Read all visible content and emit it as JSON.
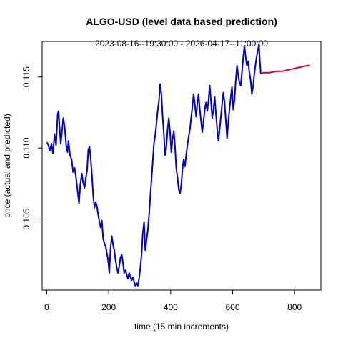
{
  "chart_data": {
    "type": "line",
    "title": "ALGO-USD (level data based prediction)",
    "subtitle": "2023-08-16--19:30:00  -  2026-04-17--11:00:00",
    "xlabel": "time (15 min increments)",
    "ylabel": "price (actual and predicted)",
    "xlim": [
      -15,
      885
    ],
    "ylim": [
      0.1,
      0.1175
    ],
    "x_ticks": [
      0,
      200,
      400,
      600,
      800
    ],
    "y_ticks": [
      0.105,
      0.11,
      0.115
    ],
    "grid": false,
    "colors": {
      "actual": "#0000cc",
      "predicted": "#cc0033"
    },
    "series": [
      {
        "points": [
          [
            0,
            0.1104
          ],
          [
            5,
            0.1102
          ],
          [
            10,
            0.1098
          ],
          [
            15,
            0.1103
          ],
          [
            20,
            0.1096
          ],
          [
            25,
            0.111
          ],
          [
            30,
            0.1102
          ],
          [
            35,
            0.1124
          ],
          [
            38,
            0.1126
          ],
          [
            42,
            0.1112
          ],
          [
            45,
            0.1103
          ],
          [
            50,
            0.1114
          ],
          [
            53,
            0.1121
          ],
          [
            57,
            0.1116
          ],
          [
            60,
            0.1109
          ],
          [
            63,
            0.1101
          ],
          [
            67,
            0.1097
          ],
          [
            70,
            0.1105
          ],
          [
            75,
            0.1095
          ],
          [
            80,
            0.1092
          ],
          [
            85,
            0.1083
          ],
          [
            90,
            0.1086
          ],
          [
            95,
            0.1078
          ],
          [
            100,
            0.1069
          ],
          [
            104,
            0.1061
          ],
          [
            108,
            0.1074
          ],
          [
            113,
            0.1082
          ],
          [
            117,
            0.1076
          ],
          [
            122,
            0.1072
          ],
          [
            126,
            0.1079
          ],
          [
            130,
            0.1084
          ],
          [
            134,
            0.1099
          ],
          [
            138,
            0.1101
          ],
          [
            142,
            0.1092
          ],
          [
            146,
            0.108
          ],
          [
            150,
            0.1066
          ],
          [
            154,
            0.1058
          ],
          [
            158,
            0.1062
          ],
          [
            162,
            0.1059
          ],
          [
            166,
            0.1053
          ],
          [
            170,
            0.1048
          ],
          [
            174,
            0.1044
          ],
          [
            178,
            0.1049
          ],
          [
            182,
            0.1036
          ],
          [
            186,
            0.1033
          ],
          [
            190,
            0.1031
          ],
          [
            194,
            0.1026
          ],
          [
            198,
            0.1021
          ],
          [
            202,
            0.1012
          ],
          [
            206,
            0.103
          ],
          [
            210,
            0.1038
          ],
          [
            214,
            0.1032
          ],
          [
            218,
            0.1028
          ],
          [
            222,
            0.1021
          ],
          [
            226,
            0.1016
          ],
          [
            230,
            0.1012
          ],
          [
            234,
            0.1017
          ],
          [
            238,
            0.1023
          ],
          [
            242,
            0.1025
          ],
          [
            246,
            0.1019
          ],
          [
            250,
            0.1012
          ],
          [
            254,
            0.1014
          ],
          [
            258,
            0.1011
          ],
          [
            262,
            0.1008
          ],
          [
            266,
            0.1012
          ],
          [
            270,
            0.1009
          ],
          [
            274,
            0.1007
          ],
          [
            278,
            0.1009
          ],
          [
            282,
            0.1006
          ],
          [
            286,
            0.1003
          ],
          [
            290,
            0.1005
          ],
          [
            294,
            0.1003
          ],
          [
            298,
            0.1008
          ],
          [
            302,
            0.1016
          ],
          [
            306,
            0.1025
          ],
          [
            310,
            0.104
          ],
          [
            314,
            0.1048
          ],
          [
            318,
            0.1028
          ],
          [
            322,
            0.1035
          ],
          [
            326,
            0.1042
          ],
          [
            330,
            0.1052
          ],
          [
            334,
            0.1065
          ],
          [
            338,
            0.1078
          ],
          [
            342,
            0.109
          ],
          [
            346,
            0.1103
          ],
          [
            350,
            0.1109
          ],
          [
            354,
            0.1117
          ],
          [
            358,
            0.1126
          ],
          [
            362,
            0.1133
          ],
          [
            366,
            0.1145
          ],
          [
            370,
            0.1138
          ],
          [
            374,
            0.1122
          ],
          [
            378,
            0.111
          ],
          [
            382,
            0.1095
          ],
          [
            386,
            0.1101
          ],
          [
            390,
            0.1113
          ],
          [
            394,
            0.1121
          ],
          [
            398,
            0.1111
          ],
          [
            402,
            0.1097
          ],
          [
            406,
            0.1106
          ],
          [
            410,
            0.1112
          ],
          [
            414,
            0.1101
          ],
          [
            418,
            0.1086
          ],
          [
            422,
            0.1079
          ],
          [
            426,
            0.1071
          ],
          [
            430,
            0.1068
          ],
          [
            434,
            0.1074
          ],
          [
            438,
            0.1085
          ],
          [
            442,
            0.1092
          ],
          [
            446,
            0.1087
          ],
          [
            450,
            0.1095
          ],
          [
            454,
            0.1102
          ],
          [
            458,
            0.1108
          ],
          [
            462,
            0.1113
          ],
          [
            466,
            0.1121
          ],
          [
            470,
            0.1129
          ],
          [
            474,
            0.1138
          ],
          [
            478,
            0.1131
          ],
          [
            482,
            0.1122
          ],
          [
            486,
            0.1131
          ],
          [
            490,
            0.1138
          ],
          [
            494,
            0.1127
          ],
          [
            498,
            0.1119
          ],
          [
            502,
            0.1111
          ],
          [
            506,
            0.1119
          ],
          [
            510,
            0.1127
          ],
          [
            514,
            0.1132
          ],
          [
            518,
            0.1126
          ],
          [
            522,
            0.1133
          ],
          [
            526,
            0.1144
          ],
          [
            530,
            0.1133
          ],
          [
            534,
            0.1121
          ],
          [
            538,
            0.1127
          ],
          [
            542,
            0.1136
          ],
          [
            546,
            0.1124
          ],
          [
            550,
            0.1114
          ],
          [
            554,
            0.1105
          ],
          [
            558,
            0.1113
          ],
          [
            562,
            0.1122
          ],
          [
            566,
            0.1131
          ],
          [
            570,
            0.1139
          ],
          [
            574,
            0.1132
          ],
          [
            578,
            0.1119
          ],
          [
            582,
            0.1107
          ],
          [
            586,
            0.1118
          ],
          [
            590,
            0.1128
          ],
          [
            594,
            0.1136
          ],
          [
            598,
            0.1143
          ],
          [
            602,
            0.1127
          ],
          [
            606,
            0.1134
          ],
          [
            610,
            0.1147
          ],
          [
            614,
            0.1158
          ],
          [
            618,
            0.1151
          ],
          [
            622,
            0.1146
          ],
          [
            626,
            0.1144
          ],
          [
            630,
            0.1153
          ],
          [
            634,
            0.1163
          ],
          [
            638,
            0.1172
          ],
          [
            642,
            0.1164
          ],
          [
            646,
            0.1158
          ],
          [
            650,
            0.1161
          ],
          [
            654,
            0.1153
          ],
          [
            658,
            0.1148
          ],
          [
            662,
            0.1138
          ],
          [
            666,
            0.1143
          ],
          [
            670,
            0.1152
          ],
          [
            674,
            0.1159
          ],
          [
            678,
            0.1165
          ],
          [
            682,
            0.1169
          ],
          [
            685,
            0.1173
          ],
          [
            688,
            0.1161
          ],
          [
            691,
            0.1152
          ]
        ]
      },
      {
        "points": [
          [
            691,
            0.1152
          ],
          [
            700,
            0.1153
          ],
          [
            720,
            0.1153
          ],
          [
            740,
            0.1154
          ],
          [
            760,
            0.1154
          ],
          [
            780,
            0.1155
          ],
          [
            800,
            0.1156
          ],
          [
            820,
            0.1157
          ],
          [
            840,
            0.1158
          ],
          [
            850,
            0.1158
          ]
        ]
      }
    ]
  }
}
